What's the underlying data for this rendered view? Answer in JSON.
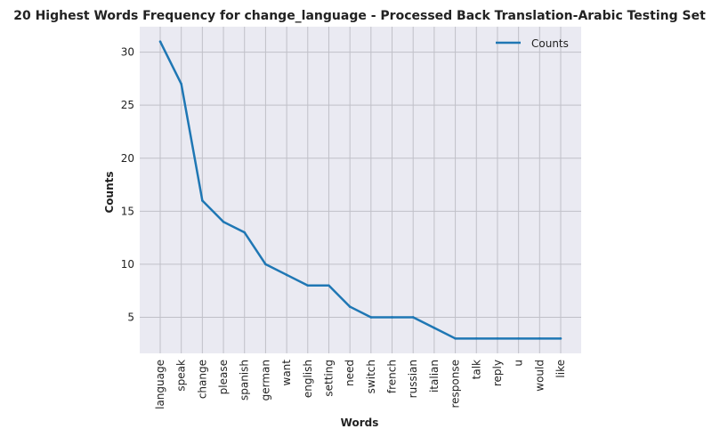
{
  "chart_data": {
    "type": "line",
    "title": "20 Highest Words Frequency for change_language - Processed Back Translation-Arabic Testing Set",
    "xlabel": "Words",
    "ylabel": "Counts",
    "categories": [
      "language",
      "speak",
      "change",
      "please",
      "spanish",
      "german",
      "want",
      "english",
      "setting",
      "need",
      "switch",
      "french",
      "russian",
      "italian",
      "response",
      "talk",
      "reply",
      "u",
      "would",
      "like"
    ],
    "series": [
      {
        "name": "Counts",
        "values": [
          31,
          27,
          16,
          14,
          13,
          10,
          9,
          8,
          8,
          6,
          5,
          5,
          5,
          4,
          3,
          3,
          3,
          3,
          3,
          3
        ]
      }
    ],
    "yticks": [
      5,
      10,
      15,
      20,
      25,
      30
    ],
    "ylim": [
      1.6,
      32.4
    ],
    "grid": true,
    "legend_position": "top-right",
    "colors": {
      "line": "#1f77b4",
      "plot_bg": "#eaeaf2",
      "grid": "#c0c0c8"
    }
  }
}
